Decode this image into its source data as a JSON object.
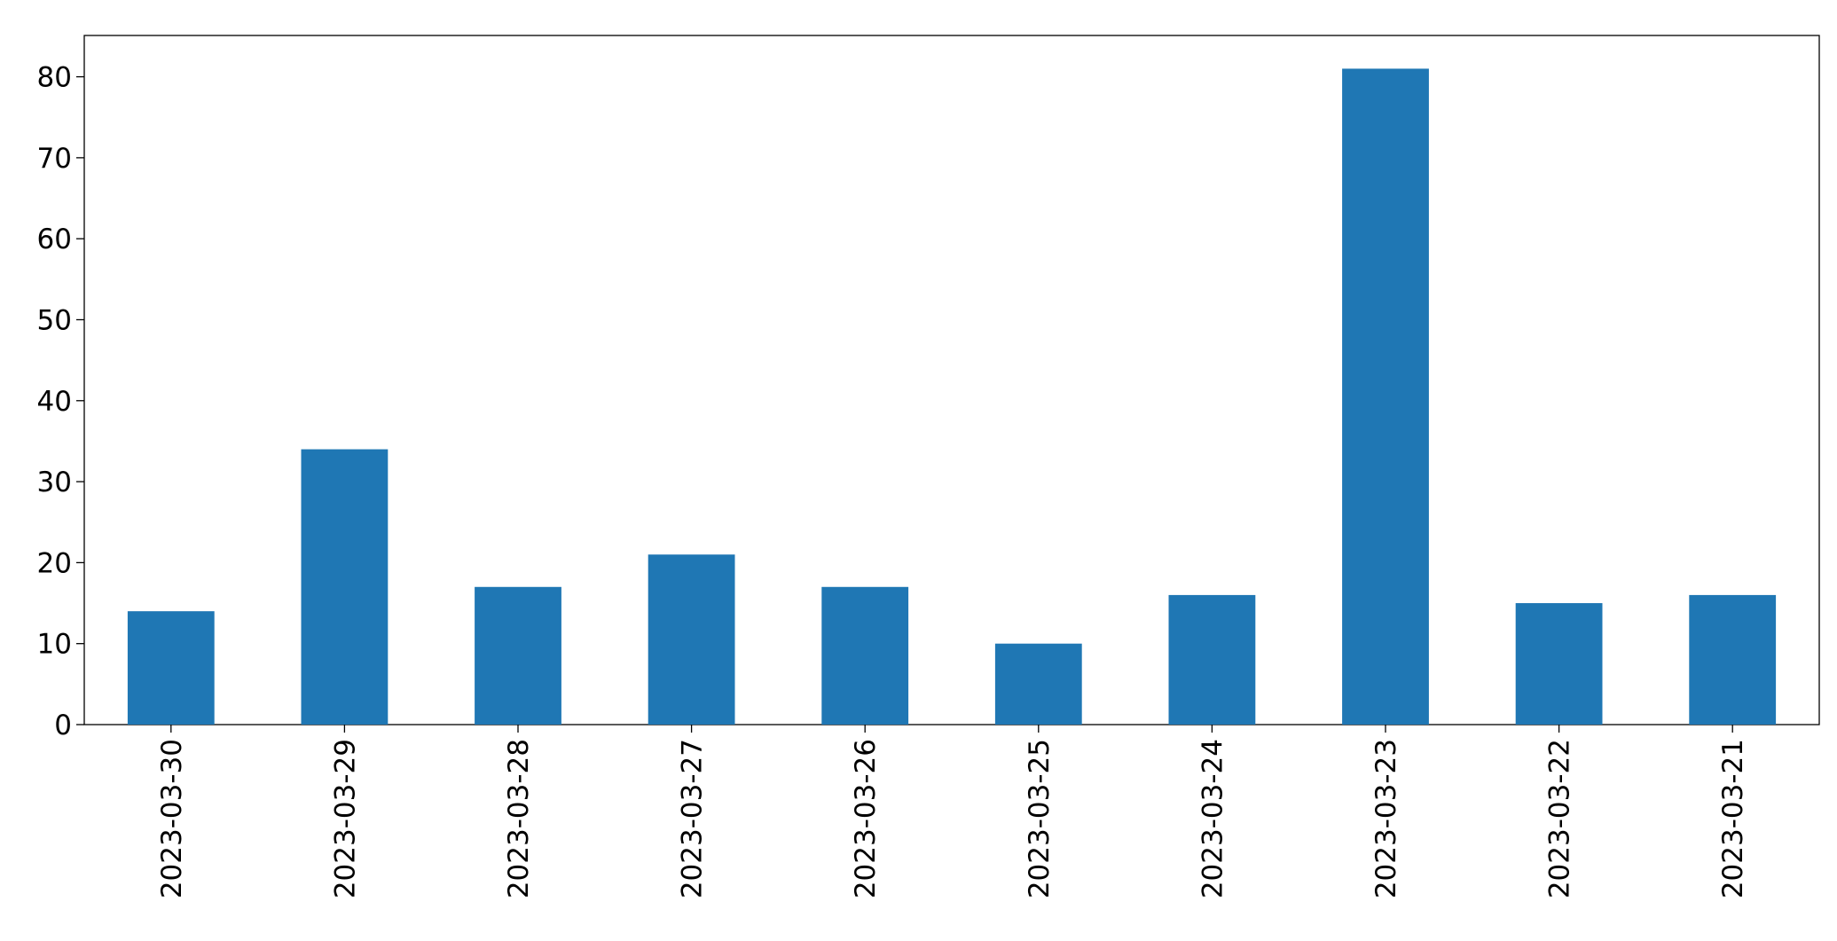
{
  "chart_data": {
    "type": "bar",
    "categories": [
      "2023-03-30",
      "2023-03-29",
      "2023-03-28",
      "2023-03-27",
      "2023-03-26",
      "2023-03-25",
      "2023-03-24",
      "2023-03-23",
      "2023-03-22",
      "2023-03-21"
    ],
    "values": [
      14,
      34,
      17,
      21,
      17,
      10,
      16,
      81,
      15,
      16
    ],
    "color": "#1f77b4",
    "ylim": [
      0,
      85.1
    ],
    "yticks": [
      0,
      10,
      20,
      30,
      40,
      50,
      60,
      70,
      80
    ],
    "grid": false
  }
}
